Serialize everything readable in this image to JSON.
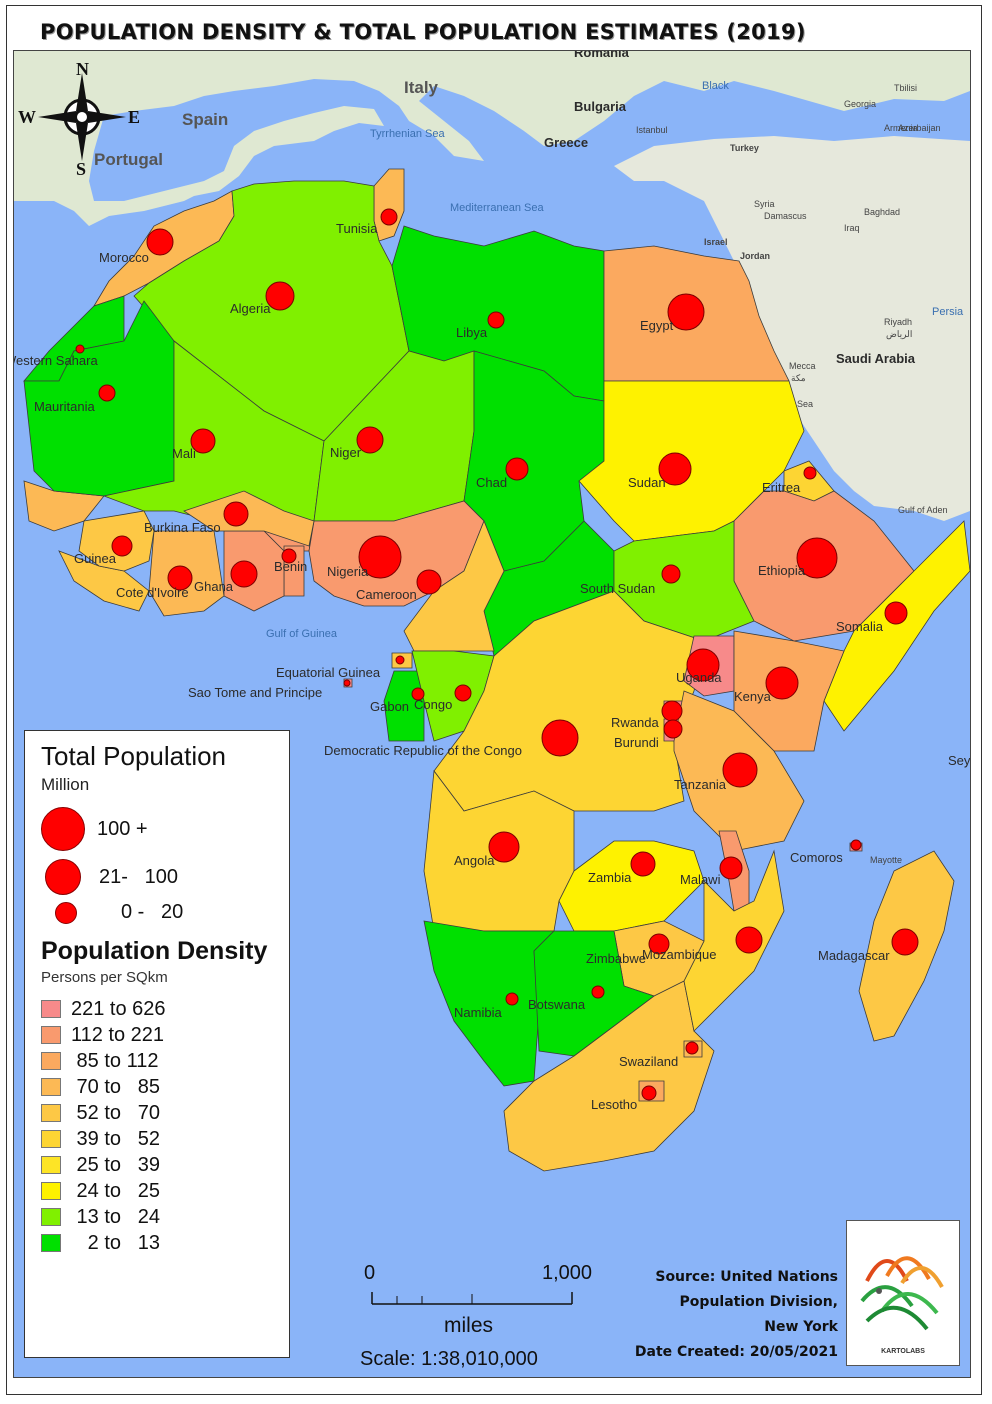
{
  "title": "POPULATION DENSITY & TOTAL POPULATION ESTIMATES (2019)",
  "colors": {
    "ocean": "#8ab4f8",
    "land_background": "#dfe6cf",
    "circle": "#ff0000",
    "border": "#3b3b3b"
  },
  "map_labels": {
    "romania": "Romania",
    "italy": "Italy",
    "spain": "Spain",
    "portugal": "Portugal",
    "bulgaria": "Bulgaria",
    "istanbul": "Istanbul",
    "greece": "Greece",
    "turkey": "Turkey",
    "black_sea": "Black",
    "tyrrhenian": "Tyrrhenian Sea",
    "mediterranean": "Mediterranean Sea",
    "israel": "Israel",
    "jordan": "Jordan",
    "riyadh": "Riyadh",
    "riyadh_ar": "الرياض",
    "saudi_arabia": "Saudi Arabia",
    "mecca": "Mecca",
    "mecca_ar": "مكة",
    "persia": "Persia",
    "gulf_of_guinea": "Gulf of Guinea",
    "sey": "Sey",
    "mayotte": "Mayotte",
    "syria": "Syria",
    "damascus": "Damascus",
    "baghdad": "Baghdad",
    "iraq": "Iraq",
    "georgia": "Georgia",
    "armenia": "Armenia",
    "azerbaijan": "Azerbaijan",
    "tbilisi": "Tbilisi",
    "red_sea": "Red Sea",
    "gulf_of_aden": "Gulf of Aden"
  },
  "countries": [
    {
      "name": "Morocco",
      "density_class": "70 to 85",
      "pop_class": "21- 100"
    },
    {
      "name": "Tunisia",
      "density_class": "70 to 85",
      "pop_class": "0- 20"
    },
    {
      "name": "Algeria",
      "density_class": "13 to 24",
      "pop_class": "21- 100"
    },
    {
      "name": "Libya",
      "density_class": "2 to 13",
      "pop_class": "0- 20"
    },
    {
      "name": "Egypt",
      "density_class": "85 to 112",
      "pop_class": "100 +"
    },
    {
      "name": "Western Sahara",
      "density_class": "2 to 13",
      "pop_class": "0- 20"
    },
    {
      "name": "Mauritania",
      "density_class": "2 to 13",
      "pop_class": "0- 20"
    },
    {
      "name": "Mali",
      "density_class": "13 to 24",
      "pop_class": "0- 20"
    },
    {
      "name": "Niger",
      "density_class": "13 to 24",
      "pop_class": "21- 100"
    },
    {
      "name": "Chad",
      "density_class": "2 to 13",
      "pop_class": "0- 20"
    },
    {
      "name": "Sudan",
      "density_class": "24 to 25",
      "pop_class": "21- 100"
    },
    {
      "name": "Eritrea",
      "density_class": "39 to 52",
      "pop_class": "0- 20"
    },
    {
      "name": "Ethiopia",
      "density_class": "112 to 221",
      "pop_class": "100 +"
    },
    {
      "name": "Somalia",
      "density_class": "24 to 25",
      "pop_class": "0- 20"
    },
    {
      "name": "South Sudan",
      "density_class": "13 to 24",
      "pop_class": "0- 20"
    },
    {
      "name": "Nigeria",
      "density_class": "112 to 221",
      "pop_class": "100 +"
    },
    {
      "name": "Cameroon",
      "density_class": "52 to 70",
      "pop_class": "21- 100"
    },
    {
      "name": "Benin",
      "density_class": "112 to 221",
      "pop_class": "0- 20"
    },
    {
      "name": "Ghana",
      "density_class": "112 to 221",
      "pop_class": "21- 100"
    },
    {
      "name": "Cote d'Ivoire",
      "density_class": "70 to 85",
      "pop_class": "21- 100"
    },
    {
      "name": "Burkina Faso",
      "density_class": "70 to 85",
      "pop_class": "0- 20"
    },
    {
      "name": "Guinea",
      "density_class": "52 to 70",
      "pop_class": "0- 20"
    },
    {
      "name": "Equatorial Guinea",
      "density_class": "52 to 70",
      "pop_class": "0- 20"
    },
    {
      "name": "Sao Tome and Principe",
      "density_class": "221 to 626",
      "pop_class": "0- 20"
    },
    {
      "name": "Gabon",
      "density_class": "2 to 13",
      "pop_class": "0- 20"
    },
    {
      "name": "Congo",
      "density_class": "13 to 24",
      "pop_class": "0- 20"
    },
    {
      "name": "Democratic Republic of the Congo",
      "density_class": "39 to 52",
      "pop_class": "21- 100"
    },
    {
      "name": "Uganda",
      "density_class": "221 to 626",
      "pop_class": "21- 100"
    },
    {
      "name": "Kenya",
      "density_class": "85 to 112",
      "pop_class": "21- 100"
    },
    {
      "name": "Rwanda",
      "density_class": "221 to 626",
      "pop_class": "0- 20"
    },
    {
      "name": "Burundi",
      "density_class": "221 to 626",
      "pop_class": "0- 20"
    },
    {
      "name": "Tanzania",
      "density_class": "70 to 85",
      "pop_class": "21- 100"
    },
    {
      "name": "Angola",
      "density_class": "39 to 52",
      "pop_class": "21- 100"
    },
    {
      "name": "Zambia",
      "density_class": "24 to 25",
      "pop_class": "0- 20"
    },
    {
      "name": "Malawi",
      "density_class": "112 to 221",
      "pop_class": "0- 20"
    },
    {
      "name": "Mozambique",
      "density_class": "39 to 52",
      "pop_class": "21- 100"
    },
    {
      "name": "Comoros",
      "density_class": "221 to 626",
      "pop_class": "0- 20"
    },
    {
      "name": "Madagascar",
      "density_class": "52 to 70",
      "pop_class": "21- 100"
    },
    {
      "name": "Zimbabwe",
      "density_class": "52 to 70",
      "pop_class": "0- 20"
    },
    {
      "name": "Namibia",
      "density_class": "2 to 13",
      "pop_class": "0- 20"
    },
    {
      "name": "Botswana",
      "density_class": "2 to 13",
      "pop_class": "0- 20"
    },
    {
      "name": "Swaziland",
      "density_class": "70 to 85",
      "pop_class": "0- 20"
    },
    {
      "name": "Lesotho",
      "density_class": "85 to 112",
      "pop_class": "0- 20"
    }
  ],
  "compass": {
    "n": "N",
    "s": "S",
    "e": "E",
    "w": "W"
  },
  "legend": {
    "pop_title": "Total Population",
    "pop_unit": "Million",
    "pop_classes": [
      {
        "label": "100 +"
      },
      {
        "label": "21-   100"
      },
      {
        "label": "0 -   20"
      }
    ],
    "density_title": "Population Density",
    "density_unit": "Persons per SQkm",
    "density_classes": [
      {
        "label": "221 to 626",
        "color": "#f78a8a"
      },
      {
        "label": "112 to 221",
        "color": "#f99a6e"
      },
      {
        "label": " 85 to 112",
        "color": "#fba95f"
      },
      {
        "label": " 70 to   85",
        "color": "#fcb955"
      },
      {
        "label": " 52 to   70",
        "color": "#fdc845"
      },
      {
        "label": " 39 to   52",
        "color": "#fdd533"
      },
      {
        "label": " 25 to   39",
        "color": "#fde426"
      },
      {
        "label": " 24 to   25",
        "color": "#fef200"
      },
      {
        "label": " 13 to   24",
        "color": "#80f000"
      },
      {
        "label": "   2 to   13",
        "color": "#00e000"
      }
    ]
  },
  "scale": {
    "start": "0",
    "end": "1,000",
    "unit": "miles",
    "ratio": "Scale: 1:38,010,000"
  },
  "source": {
    "line1": "Source: United Nations",
    "line2": "Population Division,",
    "line3": "New York",
    "date": "Date Created: 20/05/2021"
  },
  "logo_text": "KARTOLABS"
}
